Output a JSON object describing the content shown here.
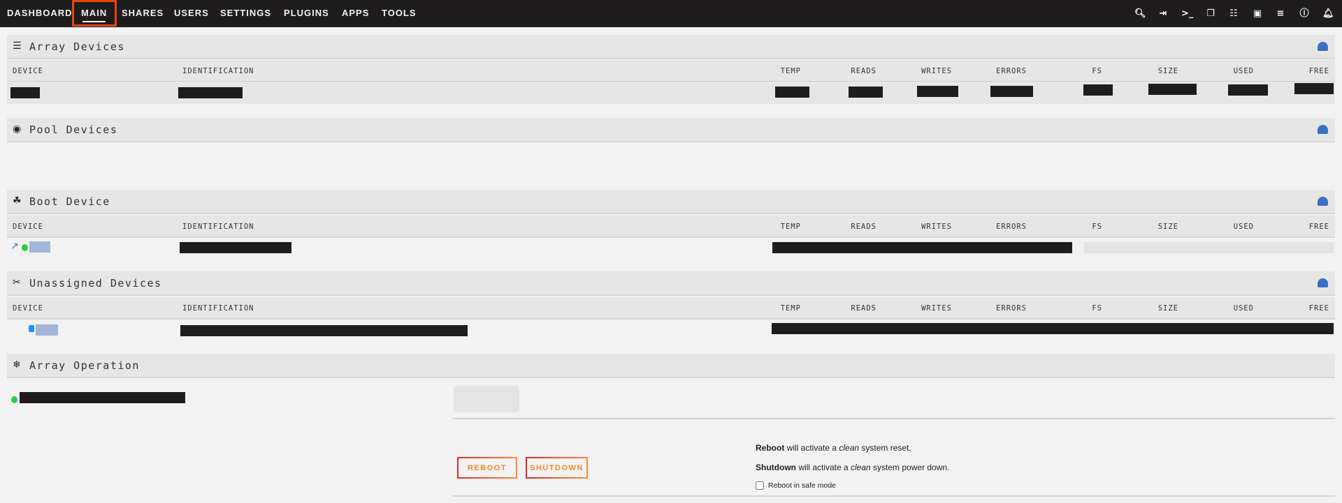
{
  "nav": {
    "items": [
      "DASHBOARD",
      "MAIN",
      "SHARES",
      "USERS",
      "SETTINGS",
      "PLUGINS",
      "APPS",
      "TOOLS"
    ],
    "active": "MAIN"
  },
  "toolbar_icons": [
    "search-icon",
    "logout-icon",
    "terminal-icon",
    "copy-window-icon",
    "feedback-icon",
    "display-icon",
    "log-icon",
    "help-icon",
    "bell-icon"
  ],
  "sections": {
    "array": "Array Devices",
    "pool": "Pool Devices",
    "boot": "Boot Device",
    "unassigned": "Unassigned Devices",
    "operation": "Array Operation"
  },
  "columns": [
    "DEVICE",
    "IDENTIFICATION",
    "TEMP",
    "READS",
    "WRITES",
    "ERRORS",
    "FS",
    "SIZE",
    "USED",
    "FREE"
  ],
  "operation": {
    "reboot_label": "REBOOT",
    "shutdown_label": "SHUTDOWN",
    "reboot_strong": "Reboot",
    "reboot_mid": " will activate a ",
    "reboot_em": "clean",
    "reboot_end": " system reset.",
    "shutdown_strong": "Shutdown",
    "shutdown_mid": " will activate a ",
    "shutdown_em": "clean",
    "shutdown_end": " system power down.",
    "safe_mode_label": "Reboot in safe mode",
    "safe_mode_checked": false
  },
  "colors": {
    "nav_bg": "#1e1c1d",
    "accent": "#e8440f",
    "status_online": "#2ecc40",
    "status_unassigned": "#1e90ff",
    "link": "#3a6fc4"
  }
}
